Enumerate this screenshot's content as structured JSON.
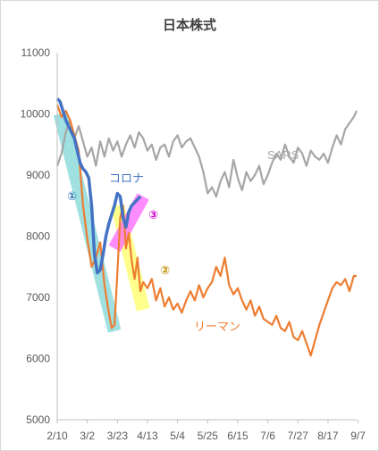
{
  "chart_data": {
    "type": "line",
    "title": "日本株式",
    "ylim": [
      5000,
      11000
    ],
    "yticks": [
      5000,
      6000,
      7000,
      8000,
      9000,
      10000,
      11000
    ],
    "xlim": [
      0,
      209
    ],
    "xtick_labels": [
      "2/10",
      "3/2",
      "3/23",
      "4/13",
      "5/4",
      "5/25",
      "6/15",
      "7/6",
      "7/27",
      "8/17",
      "9/7"
    ],
    "xtick_days": [
      0,
      21,
      42,
      63,
      84,
      105,
      126,
      147,
      168,
      189,
      210
    ],
    "grid": false,
    "legend": "none",
    "series": [
      {
        "name": "SARS",
        "color": "#a6a6a6",
        "x": [
          0,
          3,
          6,
          9,
          12,
          15,
          18,
          21,
          24,
          27,
          30,
          33,
          36,
          39,
          42,
          45,
          48,
          51,
          54,
          57,
          60,
          63,
          66,
          69,
          72,
          75,
          78,
          81,
          84,
          87,
          90,
          93,
          96,
          99,
          102,
          105,
          108,
          111,
          114,
          117,
          120,
          123,
          126,
          129,
          132,
          135,
          138,
          141,
          144,
          147,
          150,
          153,
          156,
          159,
          162,
          165,
          168,
          171,
          174,
          177,
          180,
          183,
          186,
          189,
          192,
          195,
          198,
          201,
          204,
          207,
          209
        ],
        "values": [
          9150,
          9350,
          9700,
          9900,
          9600,
          9800,
          9550,
          9300,
          9450,
          9150,
          9550,
          9300,
          9600,
          9400,
          9550,
          9300,
          9500,
          9650,
          9450,
          9700,
          9600,
          9400,
          9500,
          9250,
          9450,
          9500,
          9300,
          9550,
          9650,
          9450,
          9550,
          9600,
          9450,
          9300,
          9050,
          8700,
          8800,
          8650,
          8900,
          9050,
          8800,
          9250,
          8950,
          8750,
          9050,
          8900,
          9000,
          9150,
          8850,
          9000,
          9200,
          9350,
          9250,
          9500,
          9300,
          9200,
          9450,
          9350,
          9150,
          9400,
          9300,
          9250,
          9350,
          9200,
          9450,
          9650,
          9500,
          9750,
          9850,
          9950,
          10050
        ]
      },
      {
        "name": "リーマン",
        "color": "#ed7d31",
        "x": [
          0,
          3,
          6,
          9,
          12,
          15,
          18,
          21,
          24,
          27,
          30,
          33,
          36,
          38,
          40,
          42,
          44,
          46,
          48,
          50,
          52,
          54,
          56,
          58,
          60,
          63,
          66,
          69,
          72,
          75,
          78,
          81,
          84,
          87,
          90,
          93,
          96,
          99,
          102,
          105,
          108,
          111,
          114,
          117,
          120,
          123,
          126,
          129,
          132,
          135,
          138,
          141,
          144,
          147,
          150,
          153,
          156,
          159,
          162,
          165,
          168,
          171,
          174,
          177,
          180,
          183,
          186,
          189,
          192,
          195,
          198,
          201,
          204,
          207,
          209
        ],
        "values": [
          10150,
          9950,
          10050,
          9900,
          9650,
          9400,
          8500,
          7950,
          7500,
          7650,
          7900,
          7200,
          6750,
          6500,
          6550,
          7400,
          8300,
          8500,
          7800,
          8050,
          7600,
          7300,
          7650,
          7100,
          7250,
          7150,
          7300,
          6950,
          7150,
          6850,
          7000,
          6800,
          6900,
          6750,
          6950,
          7100,
          6950,
          7200,
          7000,
          7150,
          7250,
          7500,
          7350,
          7650,
          7200,
          7050,
          7150,
          6950,
          6800,
          6950,
          6700,
          6850,
          6650,
          6600,
          6550,
          6700,
          6500,
          6450,
          6600,
          6350,
          6300,
          6450,
          6250,
          6050,
          6300,
          6550,
          6750,
          6950,
          7150,
          7250,
          7200,
          7300,
          7100,
          7350,
          7350
        ]
      },
      {
        "name": "コロナ",
        "color": "#4472c4",
        "x": [
          0,
          2,
          4,
          6,
          8,
          10,
          12,
          14,
          16,
          18,
          20,
          22,
          24,
          26,
          28,
          30,
          32,
          34,
          36,
          38,
          40,
          42,
          44,
          46,
          48,
          50,
          52,
          54,
          56,
          58
        ],
        "values": [
          10250,
          10200,
          10050,
          9900,
          9800,
          9700,
          9600,
          9400,
          9200,
          9100,
          9050,
          8950,
          8500,
          7700,
          7400,
          7450,
          7700,
          8000,
          8200,
          8350,
          8500,
          8700,
          8650,
          8300,
          8150,
          8400,
          8500,
          8550,
          8600,
          8650
        ]
      }
    ],
    "annotations": [
      {
        "text": "SARS",
        "color": "#a6a6a6"
      },
      {
        "text": "リーマン",
        "color": "#ed7d31"
      },
      {
        "text": "コロナ",
        "color": "#4472c4"
      },
      {
        "text": "①",
        "color": "#2e75b6",
        "highlight_color": "#7fd6d6",
        "from": [
          2,
          10000
        ],
        "to": [
          40,
          6450
        ]
      },
      {
        "text": "②",
        "color": "#bf9000",
        "highlight_color": "#ffff66",
        "from": [
          42,
          8500
        ],
        "to": [
          60,
          6800
        ]
      },
      {
        "text": "③",
        "color": "#cc00cc",
        "highlight_color": "#ff66ff",
        "from": [
          40,
          7800
        ],
        "to": [
          60,
          8650
        ]
      }
    ]
  }
}
